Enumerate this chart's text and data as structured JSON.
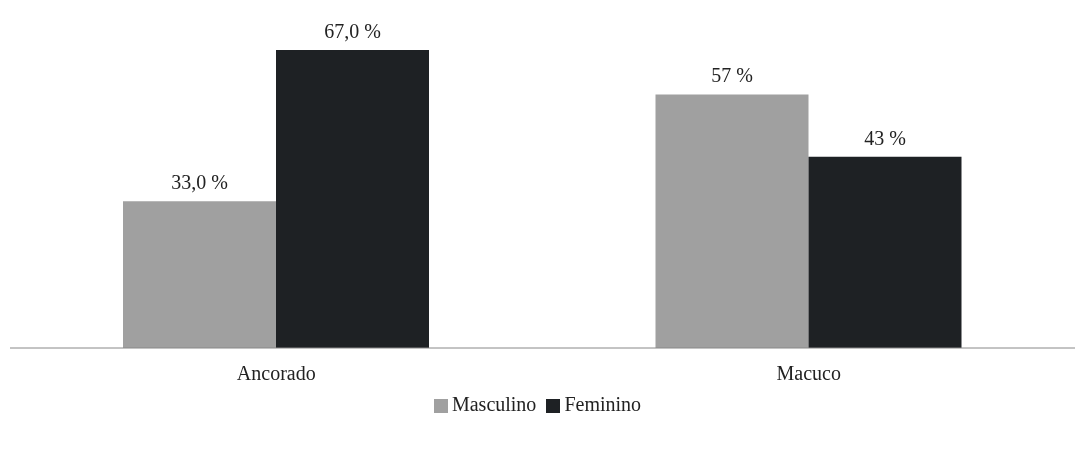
{
  "chart_data": {
    "type": "bar",
    "categories": [
      "Ancorado",
      "Macuco"
    ],
    "series": [
      {
        "name": "Masculino",
        "color": "#a0a0a0",
        "values": [
          33,
          57
        ],
        "value_labels": [
          "33,0 %",
          "57 %"
        ]
      },
      {
        "name": "Feminino",
        "color": "#1e2124",
        "values": [
          67,
          43
        ],
        "value_labels": [
          "67,0 %",
          "43 %"
        ]
      }
    ],
    "legend": "bottom",
    "grid": false
  }
}
